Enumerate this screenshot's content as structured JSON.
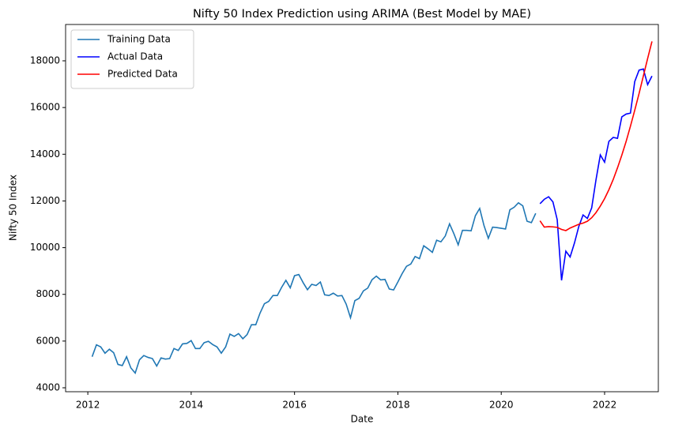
{
  "chart_data": {
    "type": "line",
    "title": "Nifty 50 Index Prediction using ARIMA (Best Model by MAE)",
    "x_label": "Date",
    "y_label": "Nifty 50 Index",
    "xlim": [
      2011.57,
      2023.04
    ],
    "xticks": [
      2012,
      2014,
      2016,
      2018,
      2020,
      2022
    ],
    "ylim": [
      3831,
      19556
    ],
    "yticks": [
      4000,
      6000,
      8000,
      10000,
      12000,
      14000,
      16000,
      18000
    ],
    "legend": "upper left",
    "series": [
      {
        "name": "Training Data",
        "color": "#1f77b4",
        "x": [
          2012.083,
          2012.167,
          2012.25,
          2012.333,
          2012.417,
          2012.5,
          2012.583,
          2012.667,
          2012.75,
          2012.833,
          2012.917,
          2013,
          2013.083,
          2013.167,
          2013.25,
          2013.333,
          2013.417,
          2013.5,
          2013.583,
          2013.667,
          2013.75,
          2013.833,
          2013.917,
          2014,
          2014.083,
          2014.167,
          2014.25,
          2014.333,
          2014.417,
          2014.5,
          2014.583,
          2014.667,
          2014.75,
          2014.833,
          2014.917,
          2015,
          2015.083,
          2015.167,
          2015.25,
          2015.333,
          2015.417,
          2015.5,
          2015.583,
          2015.667,
          2015.75,
          2015.833,
          2015.917,
          2016,
          2016.083,
          2016.167,
          2016.25,
          2016.333,
          2016.417,
          2016.5,
          2016.583,
          2016.667,
          2016.75,
          2016.833,
          2016.917,
          2017,
          2017.083,
          2017.167,
          2017.25,
          2017.333,
          2017.417,
          2017.5,
          2017.583,
          2017.667,
          2017.75,
          2017.833,
          2017.917,
          2018,
          2018.083,
          2018.167,
          2018.25,
          2018.333,
          2018.417,
          2018.5,
          2018.583,
          2018.667,
          2018.75,
          2018.833,
          2018.917,
          2019,
          2019.083,
          2019.167,
          2019.25,
          2019.333,
          2019.417,
          2019.5,
          2019.583,
          2019.667,
          2019.75,
          2019.833,
          2019.917,
          2020,
          2020.083,
          2020.167,
          2020.25,
          2020.333,
          2020.417,
          2020.5,
          2020.583,
          2020.667
        ],
        "values": [
          5330,
          5840,
          5750,
          5480,
          5650,
          5500,
          5000,
          4950,
          5330,
          4850,
          4630,
          5200,
          5380,
          5300,
          5250,
          4930,
          5280,
          5230,
          5250,
          5680,
          5600,
          5880,
          5900,
          6020,
          5680,
          5680,
          5930,
          5990,
          5850,
          5750,
          5480,
          5750,
          6300,
          6200,
          6320,
          6100,
          6280,
          6700,
          6700,
          7200,
          7600,
          7700,
          7950,
          7950,
          8300,
          8600,
          8280,
          8800,
          8850,
          8500,
          8200,
          8430,
          8380,
          8530,
          7980,
          7950,
          8050,
          7930,
          7950,
          7580,
          7000,
          7730,
          7830,
          8150,
          8270,
          8630,
          8780,
          8620,
          8640,
          8230,
          8190,
          8530,
          8890,
          9200,
          9300,
          9620,
          9530,
          10080,
          9950,
          9800,
          10320,
          10250,
          10500,
          11020,
          10600,
          10120,
          10740,
          10740,
          10720,
          11370,
          11680,
          10940,
          10400,
          10880,
          10860,
          10830,
          10800,
          11620,
          11730,
          11920,
          11790,
          11130,
          11070,
          11470
        ]
      },
      {
        "name": "Actual Data",
        "color": "#0000ff",
        "x": [
          2020.75,
          2020.833,
          2020.917,
          2021,
          2021.083,
          2021.167,
          2021.25,
          2021.333,
          2021.417,
          2021.5,
          2021.583,
          2021.667,
          2021.75,
          2021.833,
          2021.917,
          2022,
          2022.083,
          2022.167,
          2022.25,
          2022.333,
          2022.417,
          2022.5,
          2022.583,
          2022.667,
          2022.75,
          2022.833,
          2022.917
        ],
        "values": [
          11880,
          12070,
          12180,
          11960,
          11200,
          8600,
          9850,
          9600,
          10200,
          10900,
          11400,
          11250,
          11700,
          12900,
          13970,
          13660,
          14550,
          14720,
          14680,
          15600,
          15720,
          15760,
          17110,
          17600,
          17650,
          16980,
          17350
        ]
      },
      {
        "name": "Predicted Data",
        "color": "#ff0000",
        "x": [
          2020.75,
          2020.833,
          2020.917,
          2021,
          2021.083,
          2021.167,
          2021.25,
          2021.333,
          2021.417,
          2021.5,
          2021.583,
          2021.667,
          2021.75,
          2021.833,
          2021.917,
          2022,
          2022.083,
          2022.167,
          2022.25,
          2022.333,
          2022.417,
          2022.5,
          2022.583,
          2022.667,
          2022.75,
          2022.833,
          2022.917
        ],
        "values": [
          11150,
          10880,
          10900,
          10890,
          10870,
          10780,
          10730,
          10840,
          10920,
          11000,
          11050,
          11130,
          11280,
          11500,
          11780,
          12100,
          12480,
          12920,
          13420,
          13960,
          14550,
          15200,
          15880,
          16600,
          17350,
          18100,
          18830
        ]
      }
    ]
  }
}
